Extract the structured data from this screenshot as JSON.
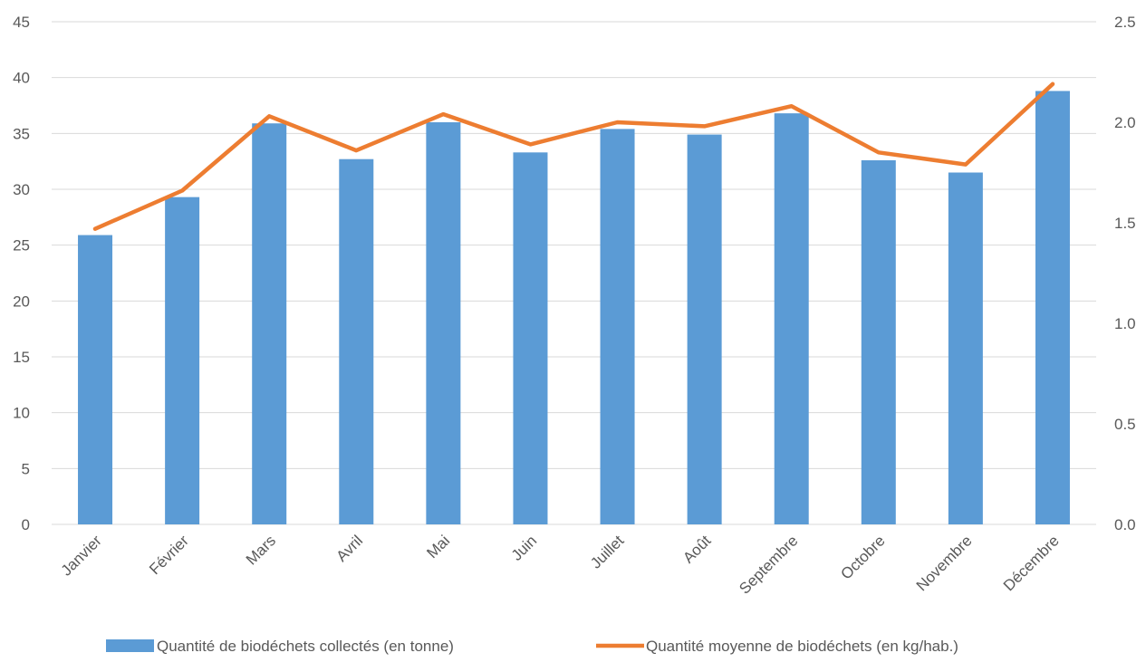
{
  "chart_data": {
    "type": "bar",
    "categories": [
      "Janvier",
      "Février",
      "Mars",
      "Avril",
      "Mai",
      "Juin",
      "Juillet",
      "Août",
      "Septembre",
      "Octobre",
      "Novembre",
      "Décembre"
    ],
    "series": [
      {
        "name": "Quantité de biodéchets collectés (en tonne)",
        "type": "bar",
        "axis": "left",
        "color": "#5b9bd5",
        "values": [
          25.9,
          29.3,
          35.9,
          32.7,
          36.0,
          33.3,
          35.4,
          34.9,
          36.8,
          32.6,
          31.5,
          38.8
        ]
      },
      {
        "name": "Quantité moyenne de biodéchets (en kg/hab.)",
        "type": "line",
        "axis": "right",
        "color": "#ed7d31",
        "values": [
          1.47,
          1.66,
          2.03,
          1.86,
          2.04,
          1.89,
          2.0,
          1.98,
          2.08,
          1.85,
          1.79,
          2.19
        ]
      }
    ],
    "y_left": {
      "min": 0,
      "max": 45,
      "ticks": [
        "0",
        "5",
        "10",
        "15",
        "20",
        "25",
        "30",
        "35",
        "40",
        "45"
      ]
    },
    "y_right": {
      "min": 0,
      "max": 2.5,
      "ticks": [
        "0.0",
        "0.5",
        "1.0",
        "1.5",
        "2.0",
        "2.5"
      ]
    },
    "grid": true,
    "legend_position": "bottom",
    "title": "",
    "xlabel": "",
    "ylabel": ""
  }
}
